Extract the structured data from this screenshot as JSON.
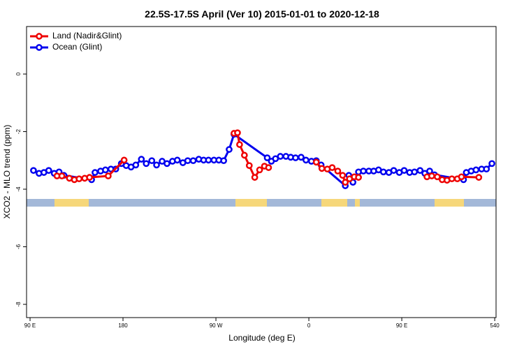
{
  "chart_data": {
    "type": "line",
    "title": "22.5S-17.5S April (Ver 10)   2015-01-01 to 2020-12-18",
    "x_label": "Longitude (deg E)",
    "y_label": "XCO2 - MLO trend (ppm)",
    "xlim": [
      86.6,
      541.3
    ],
    "ylim": [
      -8.46,
      1.65
    ],
    "xticks": [
      {
        "value": 90,
        "label": "90 E"
      },
      180,
      {
        "value": 270,
        "label": "90 W"
      },
      {
        "value": 360,
        "label": "0"
      },
      {
        "value": 450,
        "label": "90 E"
      },
      540
    ],
    "yticks": [
      0,
      -2,
      -4,
      -6,
      -8
    ],
    "legend": "top-left",
    "series": [
      {
        "name": "Ocean (Glint)",
        "color": "#0000ee",
        "x": [
          93.3,
          98.7,
          103.4,
          108.1,
          113.4,
          118.1,
          122.8,
          149.6,
          152.9,
          158.3,
          163.0,
          168.3,
          173.0,
          178.4,
          183.1,
          187.8,
          192.4,
          197.8,
          202.5,
          207.9,
          212.5,
          217.9,
          222.6,
          227.9,
          232.6,
          238.0,
          242.7,
          248.0,
          253.4,
          258.1,
          262.8,
          268.1,
          272.8,
          277.5,
          282.8,
          287.5,
          319.7,
          323.7,
          327.7,
          332.4,
          337.8,
          342.4,
          347.1,
          352.5,
          357.2,
          362.5,
          367.2,
          371.9,
          395.3,
          398.7,
          402.7,
          408.1,
          412.8,
          418.1,
          422.8,
          427.5,
          432.2,
          437.5,
          442.2,
          447.6,
          452.3,
          457.6,
          462.3,
          467.7,
          472.3,
          477.0,
          481.7,
          509.8,
          512.5,
          517.2,
          521.9,
          527.3,
          532.0,
          537.3
        ],
        "values": [
          -3.35,
          -3.45,
          -3.42,
          -3.35,
          -3.45,
          -3.4,
          -3.52,
          -3.67,
          -3.42,
          -3.37,
          -3.33,
          -3.3,
          -3.3,
          -3.11,
          -3.18,
          -3.23,
          -3.16,
          -2.96,
          -3.11,
          -3.01,
          -3.16,
          -3.03,
          -3.11,
          -3.03,
          -2.99,
          -3.08,
          -3.01,
          -3.01,
          -2.96,
          -2.99,
          -2.99,
          -2.99,
          -2.99,
          -3.01,
          -2.62,
          -2.09,
          -2.91,
          -3.03,
          -2.94,
          -2.86,
          -2.86,
          -2.89,
          -2.91,
          -2.89,
          -2.99,
          -3.03,
          -3.01,
          -3.16,
          -3.88,
          -3.52,
          -3.76,
          -3.4,
          -3.37,
          -3.37,
          -3.37,
          -3.33,
          -3.4,
          -3.42,
          -3.35,
          -3.42,
          -3.35,
          -3.42,
          -3.4,
          -3.35,
          -3.45,
          -3.37,
          -3.5,
          -3.67,
          -3.42,
          -3.37,
          -3.33,
          -3.3,
          -3.3,
          -3.11
        ]
      },
      {
        "name": "Land (Nadir&Glint)",
        "color": "#ee0000",
        "x": [
          116.1,
          120.8,
          128.1,
          132.9,
          137.5,
          142.9,
          147.6,
          165.7,
          181.1,
          null,
          287.5,
          290.9,
          292.9,
          297.6,
          302.3,
          307.6,
          312.3,
          317.0,
          321.0,
          null,
          367.2,
          372.6,
          377.9,
          382.6,
          388.0,
          392.7,
          395.3,
          399.4,
          404.0,
          408.1,
          null,
          474.4,
          479.0,
          484.4,
          489.1,
          493.8,
          498.5,
          503.8,
          507.8,
          524.6
        ],
        "values": [
          -3.54,
          -3.54,
          -3.62,
          -3.67,
          -3.64,
          -3.62,
          -3.59,
          -3.54,
          -2.99,
          null,
          -2.06,
          -2.04,
          -2.45,
          -2.82,
          -3.18,
          -3.59,
          -3.33,
          -3.2,
          -3.25,
          null,
          -3.06,
          -3.28,
          -3.3,
          -3.25,
          -3.37,
          -3.52,
          -3.76,
          -3.64,
          -3.57,
          -3.59,
          null,
          -3.57,
          -3.54,
          -3.57,
          -3.67,
          -3.69,
          -3.64,
          -3.64,
          -3.57,
          -3.59
        ]
      }
    ]
  }
}
